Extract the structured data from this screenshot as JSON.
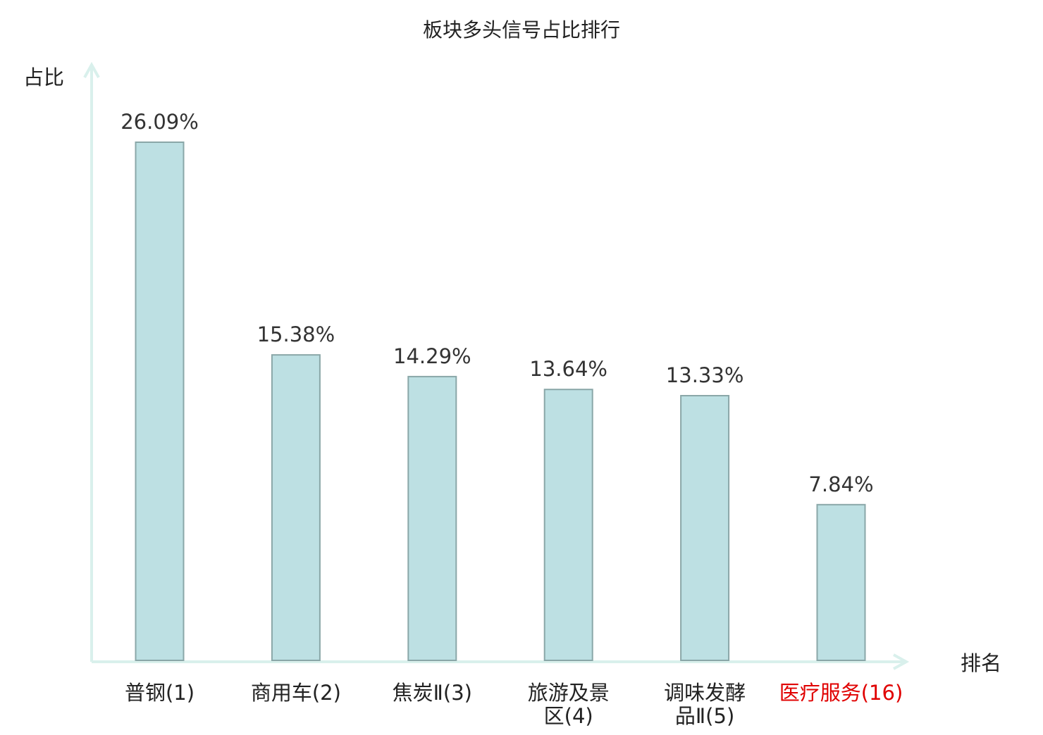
{
  "chart_data": {
    "type": "bar",
    "title": "板块多头信号占比排行",
    "ylabel": "占比",
    "xlabel": "排名",
    "categories": [
      {
        "label_lines": [
          "普钢(1)"
        ],
        "highlight": false
      },
      {
        "label_lines": [
          "商用车(2)"
        ],
        "highlight": false
      },
      {
        "label_lines": [
          "焦炭Ⅱ(3)"
        ],
        "highlight": false
      },
      {
        "label_lines": [
          "旅游及景",
          "区(4)"
        ],
        "highlight": false
      },
      {
        "label_lines": [
          "调味发酵",
          "品Ⅱ(5)"
        ],
        "highlight": false
      },
      {
        "label_lines": [
          "医疗服务(16)"
        ],
        "highlight": true
      }
    ],
    "values": [
      26.09,
      15.38,
      14.29,
      13.64,
      13.33,
      7.84
    ],
    "value_labels": [
      "26.09%",
      "15.38%",
      "14.29%",
      "13.64%",
      "13.33%",
      "7.84%"
    ],
    "unit": "%",
    "ylim": [
      0,
      26.09
    ],
    "grid": false,
    "colors": {
      "bar_fill": "#bde0e3",
      "bar_stroke": "#8aa7a8",
      "axis": "#d9f0ec",
      "text": "#222222",
      "value_text": "#333333",
      "highlight_text": "#e00000"
    }
  }
}
